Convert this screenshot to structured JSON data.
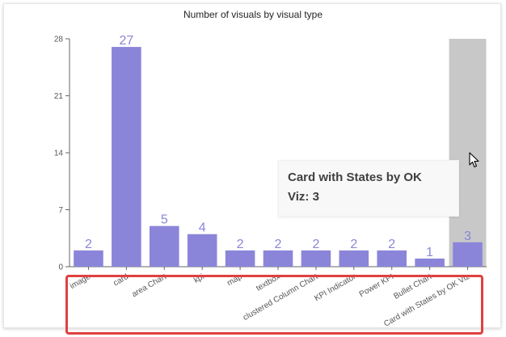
{
  "chart_data": {
    "type": "bar",
    "title": "Number of visuals by visual type",
    "xlabel": "",
    "ylabel": "",
    "categories": [
      "image",
      "card",
      "area Chart",
      "kpi",
      "map",
      "textbox",
      "clustered Column Chart",
      "KPI Indicator",
      "Power KPI",
      "Bullet Chart",
      "Card with States by OK Viz"
    ],
    "values": [
      2,
      27,
      5,
      4,
      2,
      2,
      2,
      2,
      2,
      1,
      3
    ],
    "ylim": [
      0,
      28
    ],
    "yticks": [
      0,
      7,
      14,
      21,
      28
    ],
    "grid": false,
    "legend": "none",
    "highlighted_index": 10
  },
  "tooltip": {
    "name": "Card with States by OK Viz: 3",
    "line1": "Card with States by OK",
    "line2": "Viz: 3"
  },
  "colors": {
    "bar": "#8b85d9",
    "label": "#8b85d9",
    "highlight_band": "#c8c8c8",
    "axis": "#666666",
    "tick_text": "#555555",
    "annotation_box": "#e04040"
  },
  "icons": {
    "cursor": "mouse-pointer-icon"
  }
}
